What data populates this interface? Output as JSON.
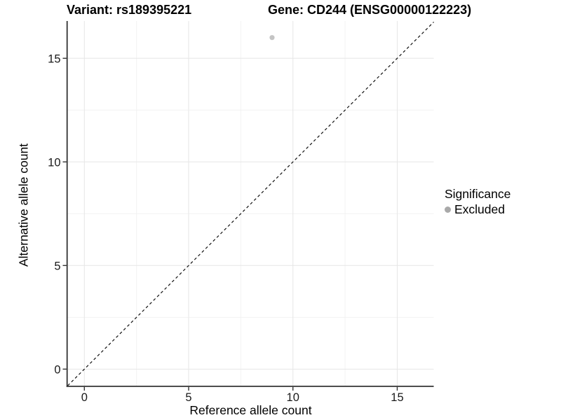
{
  "header": {
    "title_left": "Variant: rs189395221",
    "title_right": "Gene: CD244 (ENSG00000122223)"
  },
  "legend": {
    "title": "Significance",
    "items": [
      {
        "label": "Excluded",
        "color": "#a9a9a9"
      }
    ]
  },
  "colors": {
    "axis_line": "#333333",
    "tick_label": "#1a1a1a",
    "grid_major": "#e6e6e6",
    "grid_minor": "#f2f2f2",
    "identity_line": "#111111",
    "point": "#c4c4c4"
  },
  "chart_data": {
    "type": "scatter",
    "title": "Variant: rs189395221 | Gene: CD244 (ENSG00000122223)",
    "xlabel": "Reference allele count",
    "ylabel": "Alternative allele count",
    "xlim": [
      -0.8,
      16.75
    ],
    "ylim": [
      -0.8,
      16.8
    ],
    "x_ticks": [
      0,
      5,
      10,
      15
    ],
    "y_ticks": [
      0,
      5,
      10,
      15
    ],
    "x_minor_gridlines": [
      2.5,
      7.5,
      12.5
    ],
    "y_minor_gridlines": [
      2.5,
      7.5,
      12.5
    ],
    "grid": "major and minor, light gray on white",
    "legend_position": "right-middle",
    "series": [
      {
        "name": "Excluded",
        "color": "#c4c4c4",
        "points": [
          {
            "x": 9,
            "y": 16
          }
        ]
      }
    ],
    "reference_line": {
      "equation": "y = x",
      "style": "dashed",
      "color": "#111111"
    }
  }
}
